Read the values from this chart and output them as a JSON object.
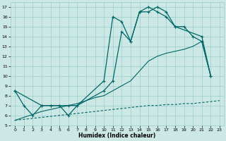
{
  "xlabel": "Humidex (Indice chaleur)",
  "bg_color": "#cce8e4",
  "grid_color": "#99cccc",
  "line_color": "#006666",
  "xlim": [
    -0.5,
    23.5
  ],
  "ylim": [
    5,
    17.5
  ],
  "xticks": [
    0,
    1,
    2,
    3,
    4,
    5,
    6,
    7,
    8,
    9,
    10,
    11,
    12,
    13,
    14,
    15,
    16,
    17,
    18,
    19,
    20,
    21,
    22,
    23
  ],
  "yticks": [
    5,
    6,
    7,
    8,
    9,
    10,
    11,
    12,
    13,
    14,
    15,
    16,
    17
  ],
  "series1_x": [
    0,
    1,
    2,
    3,
    4,
    5,
    6,
    7,
    10,
    11,
    12,
    13,
    14,
    15,
    16,
    17,
    18,
    19,
    20,
    21,
    22
  ],
  "series1_y": [
    8.5,
    7,
    6,
    7,
    7,
    7,
    6,
    7,
    9.5,
    16,
    15.5,
    13.5,
    16.5,
    16.5,
    17,
    16.5,
    15,
    15,
    14,
    13.5,
    10
  ],
  "series2_x": [
    0,
    3,
    4,
    5,
    6,
    7,
    10,
    11,
    12,
    13,
    14,
    15,
    16,
    17,
    18,
    21,
    22
  ],
  "series2_y": [
    8.5,
    7,
    7,
    7,
    7,
    7,
    8.5,
    9.5,
    14.5,
    13.5,
    16.5,
    17,
    16.5,
    16,
    15,
    14,
    10
  ],
  "series3_x": [
    0,
    23
  ],
  "series3_y": [
    5.5,
    7.5
  ],
  "series4_x": [
    0,
    23,
    22
  ],
  "series4_y": [
    5.5,
    13.5,
    10
  ],
  "series3_full_x": [
    0,
    1,
    2,
    3,
    4,
    5,
    6,
    7,
    8,
    9,
    10,
    11,
    12,
    13,
    14,
    15,
    16,
    17,
    18,
    19,
    20,
    21,
    22,
    23
  ],
  "series3_full_y": [
    5.5,
    5.6,
    5.7,
    5.8,
    5.9,
    6.0,
    6.1,
    6.2,
    6.3,
    6.4,
    6.5,
    6.6,
    6.7,
    6.8,
    6.9,
    7.0,
    7.0,
    7.1,
    7.1,
    7.2,
    7.2,
    7.3,
    7.4,
    7.5
  ],
  "series4_full_x": [
    0,
    1,
    2,
    3,
    4,
    5,
    6,
    7,
    8,
    9,
    10,
    11,
    12,
    13,
    14,
    15,
    16,
    17,
    18,
    19,
    20,
    21,
    22
  ],
  "series4_full_y": [
    5.5,
    5.8,
    6.1,
    6.4,
    6.6,
    6.8,
    7.0,
    7.2,
    7.5,
    7.8,
    8.0,
    8.5,
    9.0,
    9.5,
    10.5,
    11.5,
    12.0,
    12.3,
    12.5,
    12.7,
    13.0,
    13.5,
    10
  ]
}
